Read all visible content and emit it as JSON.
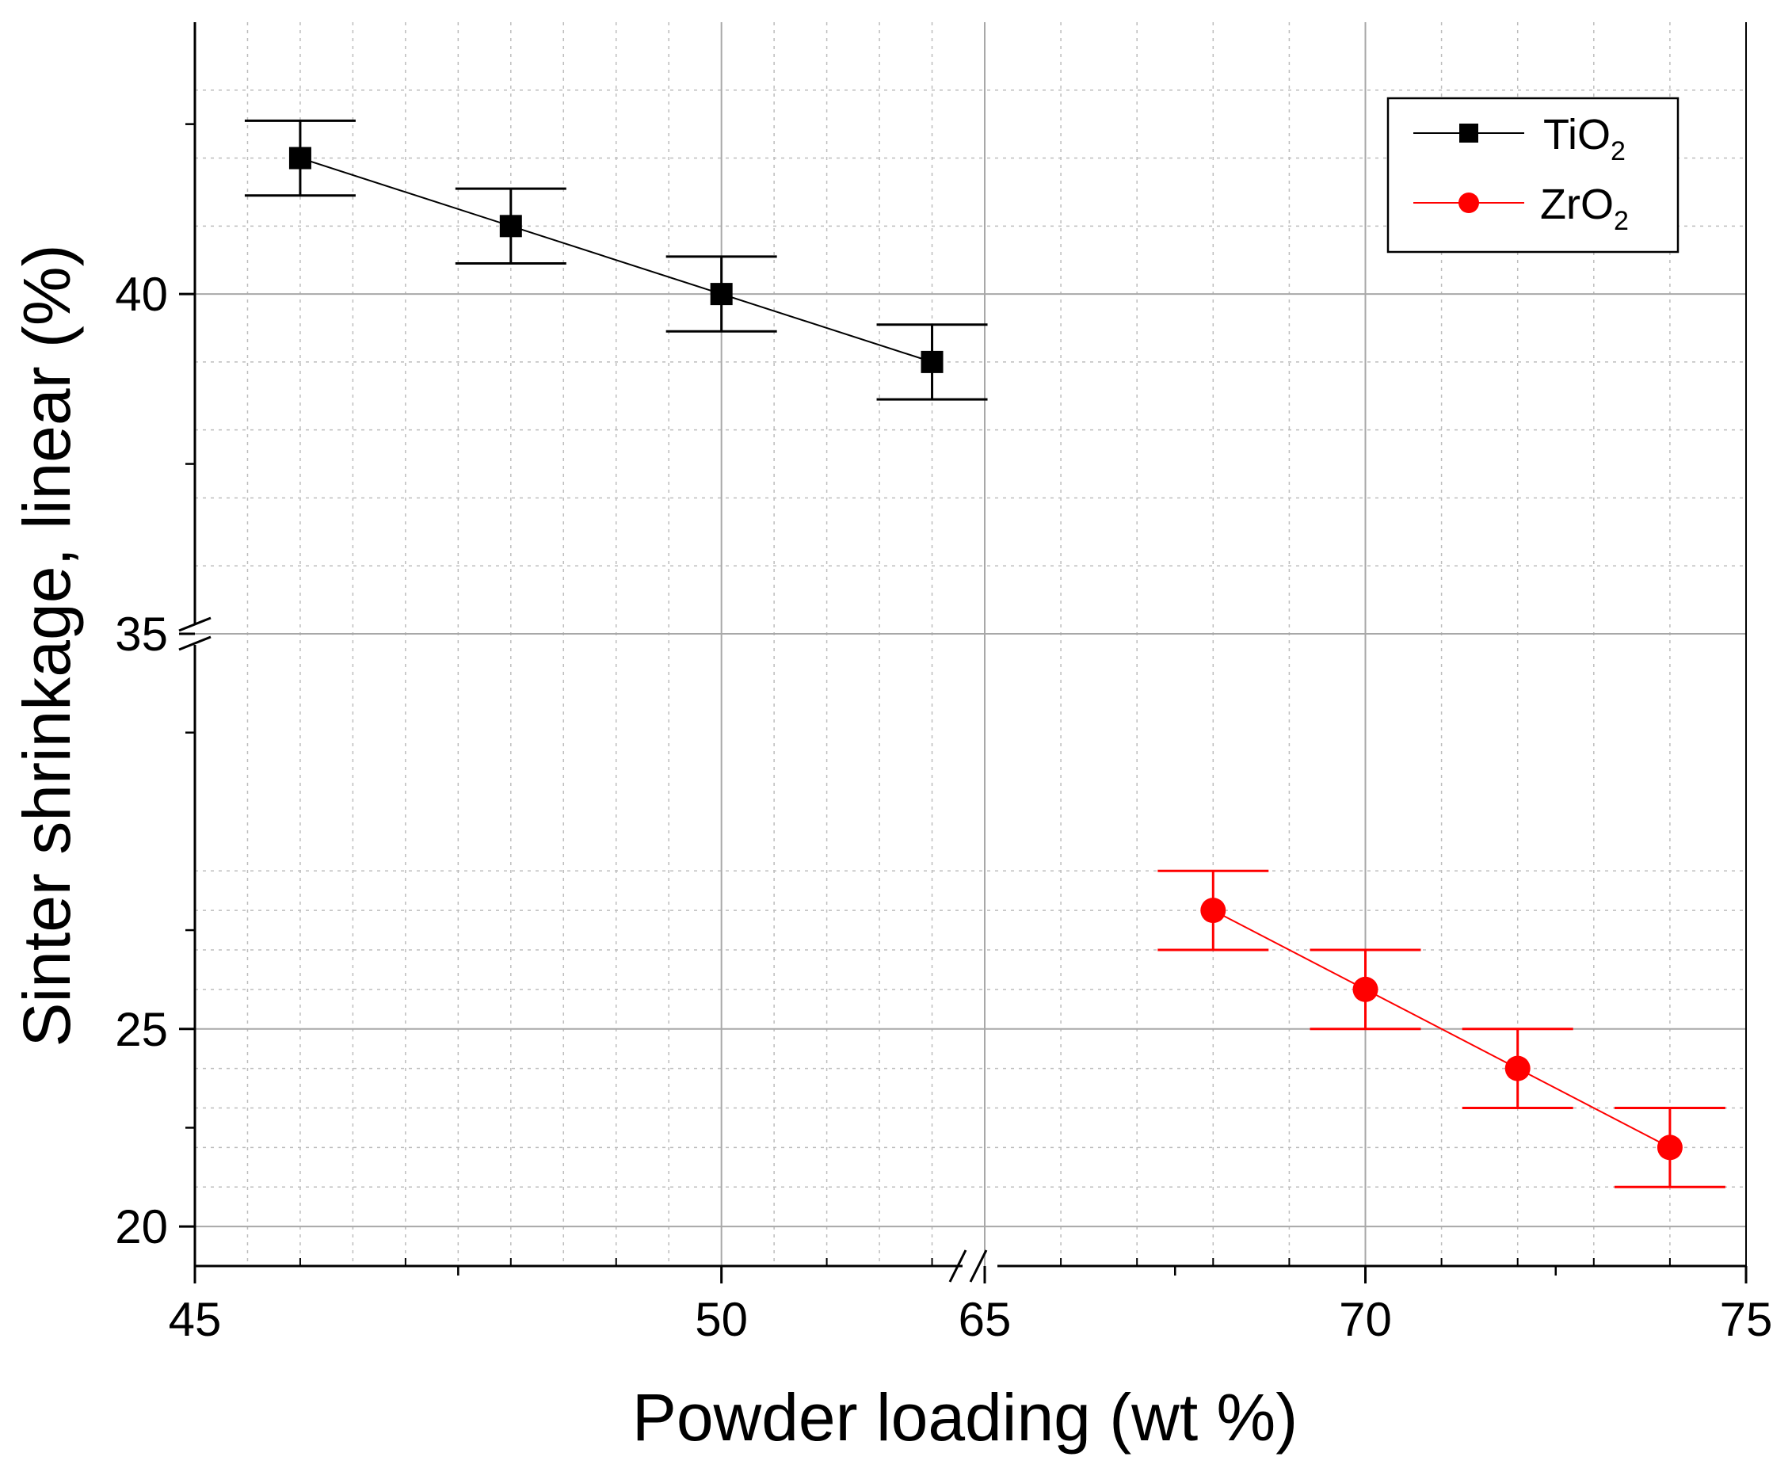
{
  "chart_data": {
    "type": "scatter",
    "title": "",
    "xlabel": "Powder loading (wt %)",
    "ylabel": "Sinter shrinkage, linear (%)",
    "x_axis": {
      "broken": true,
      "segments": [
        {
          "range": [
            45,
            52.5
          ],
          "ticks": [
            45,
            50
          ],
          "tick_labels": [
            "45",
            "50"
          ]
        },
        {
          "range": [
            65,
            75
          ],
          "ticks": [
            65,
            70,
            75
          ],
          "tick_labels": [
            "65",
            "70",
            "75"
          ]
        }
      ]
    },
    "y_axis": {
      "broken": true,
      "segments": [
        {
          "range": [
            19,
            35
          ],
          "ticks": [
            20,
            25
          ],
          "tick_labels": [
            "20",
            "25"
          ]
        },
        {
          "range": [
            35,
            44
          ],
          "ticks": [
            35,
            40
          ],
          "tick_labels": [
            "35",
            "40"
          ]
        }
      ]
    },
    "grid": true,
    "legend_position": "top-right",
    "series": [
      {
        "name_main": "TiO",
        "name_sub": "2",
        "color": "#000000",
        "marker": "square",
        "x": [
          46,
          48,
          50,
          52
        ],
        "y": [
          42,
          41,
          40,
          39
        ],
        "y_err": [
          0.55,
          0.55,
          0.55,
          0.55
        ]
      },
      {
        "name_main": "ZrO",
        "name_sub": "2",
        "color": "#ff0000",
        "marker": "circle",
        "x": [
          68,
          70,
          72,
          74
        ],
        "y": [
          28,
          26,
          24,
          22
        ],
        "y_err": [
          1,
          1,
          1,
          1
        ]
      }
    ]
  }
}
